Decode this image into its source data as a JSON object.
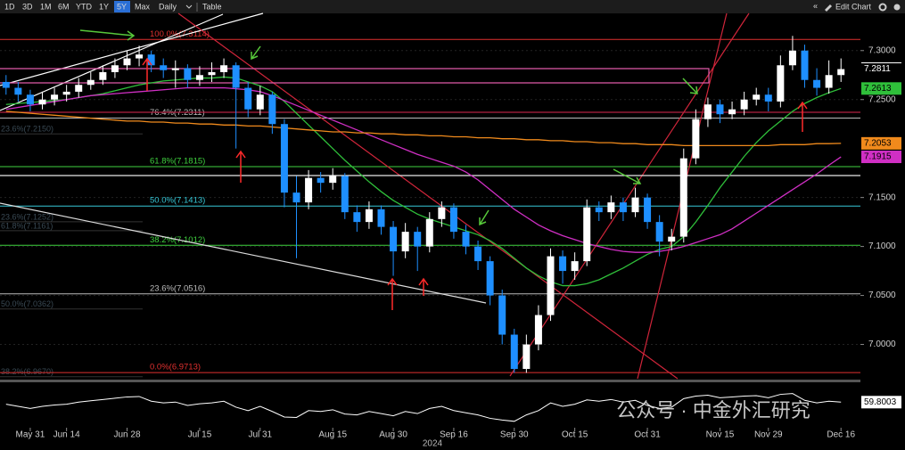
{
  "toolbar": {
    "ranges": [
      "1D",
      "3D",
      "1M",
      "6M",
      "YTD",
      "1Y",
      "5Y",
      "Max"
    ],
    "active": "5Y",
    "interval": "Daily",
    "table": "Table",
    "back": "«",
    "edit": "Edit Chart"
  },
  "chart_data": {
    "type": "candlestick",
    "categories": [
      null,
      null,
      "May 31",
      null,
      null,
      "Jun 14",
      null,
      null,
      null,
      null,
      "Jun 28",
      null,
      null,
      null,
      null,
      null,
      "Jul 15",
      null,
      null,
      null,
      null,
      "Jul 31",
      null,
      null,
      null,
      null,
      null,
      "Aug 15",
      null,
      null,
      null,
      null,
      "Aug 30",
      null,
      null,
      null,
      null,
      "Sep 16",
      null,
      null,
      null,
      null,
      "Sep 30",
      null,
      null,
      null,
      null,
      "Oct 15",
      null,
      null,
      null,
      null,
      null,
      "Oct 31",
      null,
      null,
      null,
      null,
      null,
      "Nov 15",
      null,
      null,
      null,
      "Nov 29",
      null,
      null,
      null,
      null,
      null,
      "Dec 16"
    ],
    "year": "2024",
    "candles": [
      [
        7.268,
        7.275,
        7.255,
        7.262
      ],
      [
        7.262,
        7.268,
        7.248,
        7.255
      ],
      [
        7.255,
        7.26,
        7.238,
        7.245
      ],
      [
        7.245,
        7.258,
        7.24,
        7.25
      ],
      [
        7.25,
        7.262,
        7.244,
        7.255
      ],
      [
        7.255,
        7.265,
        7.248,
        7.258
      ],
      [
        7.258,
        7.272,
        7.252,
        7.265
      ],
      [
        7.265,
        7.278,
        7.26,
        7.27
      ],
      [
        7.27,
        7.285,
        7.265,
        7.278
      ],
      [
        7.278,
        7.292,
        7.272,
        7.285
      ],
      [
        7.285,
        7.3,
        7.28,
        7.292
      ],
      [
        7.292,
        7.305,
        7.284,
        7.296
      ],
      [
        7.296,
        7.3,
        7.278,
        7.285
      ],
      [
        7.285,
        7.292,
        7.272,
        7.28
      ],
      [
        7.28,
        7.29,
        7.262,
        7.282
      ],
      [
        7.282,
        7.286,
        7.262,
        7.27
      ],
      [
        7.27,
        7.284,
        7.264,
        7.275
      ],
      [
        7.275,
        7.288,
        7.268,
        7.278
      ],
      [
        7.278,
        7.292,
        7.272,
        7.285
      ],
      [
        7.285,
        7.288,
        7.2,
        7.262
      ],
      [
        7.262,
        7.268,
        7.232,
        7.24
      ],
      [
        7.24,
        7.264,
        7.234,
        7.255
      ],
      [
        7.255,
        7.258,
        7.215,
        7.225
      ],
      [
        7.225,
        7.23,
        7.14,
        7.155
      ],
      [
        7.155,
        7.172,
        7.088,
        7.145
      ],
      [
        7.145,
        7.178,
        7.138,
        7.17
      ],
      [
        7.17,
        7.176,
        7.155,
        7.165
      ],
      [
        7.165,
        7.18,
        7.158,
        7.172
      ],
      [
        7.172,
        7.175,
        7.128,
        7.135
      ],
      [
        7.135,
        7.142,
        7.115,
        7.125
      ],
      [
        7.125,
        7.146,
        7.118,
        7.138
      ],
      [
        7.138,
        7.142,
        7.112,
        7.12
      ],
      [
        7.12,
        7.126,
        7.07,
        7.095
      ],
      [
        7.095,
        7.124,
        7.088,
        7.115
      ],
      [
        7.115,
        7.12,
        7.075,
        7.1
      ],
      [
        7.1,
        7.135,
        7.094,
        7.128
      ],
      [
        7.128,
        7.146,
        7.12,
        7.14
      ],
      [
        7.14,
        7.144,
        7.108,
        7.115
      ],
      [
        7.115,
        7.122,
        7.092,
        7.1
      ],
      [
        7.1,
        7.106,
        7.076,
        7.085
      ],
      [
        7.085,
        7.09,
        7.04,
        7.05
      ],
      [
        7.05,
        7.056,
        7.0,
        7.01
      ],
      [
        7.01,
        7.016,
        6.971,
        6.975
      ],
      [
        6.975,
        7.01,
        6.971,
        7.0
      ],
      [
        7.0,
        7.04,
        6.994,
        7.03
      ],
      [
        7.03,
        7.098,
        7.024,
        7.09
      ],
      [
        7.09,
        7.096,
        7.062,
        7.075
      ],
      [
        7.075,
        7.094,
        7.066,
        7.085
      ],
      [
        7.085,
        7.148,
        7.08,
        7.14
      ],
      [
        7.14,
        7.146,
        7.126,
        7.135
      ],
      [
        7.135,
        7.152,
        7.128,
        7.145
      ],
      [
        7.145,
        7.15,
        7.126,
        7.135
      ],
      [
        7.135,
        7.16,
        7.13,
        7.15
      ],
      [
        7.15,
        7.154,
        7.118,
        7.125
      ],
      [
        7.125,
        7.132,
        7.09,
        7.105
      ],
      [
        7.105,
        7.118,
        7.096,
        7.11
      ],
      [
        7.11,
        7.2,
        7.104,
        7.19
      ],
      [
        7.19,
        7.24,
        7.184,
        7.23
      ],
      [
        7.23,
        7.252,
        7.222,
        7.245
      ],
      [
        7.245,
        7.25,
        7.226,
        7.235
      ],
      [
        7.235,
        7.248,
        7.23,
        7.24
      ],
      [
        7.24,
        7.258,
        7.234,
        7.25
      ],
      [
        7.25,
        7.262,
        7.244,
        7.255
      ],
      [
        7.255,
        7.262,
        7.238,
        7.248
      ],
      [
        7.248,
        7.295,
        7.242,
        7.285
      ],
      [
        7.285,
        7.315,
        7.28,
        7.3
      ],
      [
        7.3,
        7.306,
        7.262,
        7.27
      ],
      [
        7.27,
        7.282,
        7.254,
        7.262
      ],
      [
        7.262,
        7.29,
        7.256,
        7.275
      ],
      [
        7.275,
        7.292,
        7.268,
        7.2811
      ]
    ],
    "candle_last_label": "7.2811",
    "up_color": "#ffffff",
    "down_color": "#1e8fff",
    "series": [
      {
        "color": "#2fbf3a",
        "last_label": "7.2613",
        "values": [
          7.245,
          7.246,
          7.247,
          7.248,
          7.249,
          7.25,
          7.252,
          7.254,
          7.256,
          7.259,
          7.262,
          7.265,
          7.267,
          7.269,
          7.27,
          7.271,
          7.272,
          7.272,
          7.273,
          7.272,
          7.268,
          7.264,
          7.258,
          7.248,
          7.236,
          7.224,
          7.212,
          7.2,
          7.188,
          7.177,
          7.166,
          7.156,
          7.147,
          7.14,
          7.133,
          7.128,
          7.124,
          7.12,
          7.116,
          7.112,
          7.106,
          7.098,
          7.088,
          7.078,
          7.07,
          7.064,
          7.06,
          7.06,
          7.062,
          7.066,
          7.072,
          7.078,
          7.085,
          7.092,
          7.097,
          7.1,
          7.11,
          7.125,
          7.142,
          7.16,
          7.176,
          7.192,
          7.206,
          7.218,
          7.228,
          7.238,
          7.246,
          7.252,
          7.257,
          7.2613
        ]
      },
      {
        "color": "#d02fc4",
        "last_label": "7.1915",
        "values": [
          7.24,
          7.242,
          7.244,
          7.246,
          7.248,
          7.25,
          7.252,
          7.254,
          7.255,
          7.256,
          7.257,
          7.258,
          7.259,
          7.26,
          7.261,
          7.262,
          7.262,
          7.262,
          7.262,
          7.261,
          7.26,
          7.258,
          7.254,
          7.249,
          7.244,
          7.239,
          7.234,
          7.229,
          7.224,
          7.219,
          7.214,
          7.209,
          7.204,
          7.199,
          7.194,
          7.19,
          7.186,
          7.182,
          7.176,
          7.168,
          7.158,
          7.148,
          7.138,
          7.13,
          7.122,
          7.116,
          7.111,
          7.107,
          7.103,
          7.1,
          7.097,
          7.095,
          7.094,
          7.094,
          7.095,
          7.097,
          7.1,
          7.104,
          7.108,
          7.112,
          7.118,
          7.126,
          7.134,
          7.142,
          7.15,
          7.158,
          7.166,
          7.174,
          7.183,
          7.1915
        ]
      },
      {
        "color": "#f08a1c",
        "last_label": "7.2053",
        "values": [
          7.238,
          7.237,
          7.236,
          7.235,
          7.234,
          7.233,
          7.232,
          7.231,
          7.23,
          7.229,
          7.228,
          7.228,
          7.227,
          7.227,
          7.226,
          7.226,
          7.225,
          7.225,
          7.224,
          7.224,
          7.223,
          7.223,
          7.222,
          7.221,
          7.22,
          7.219,
          7.218,
          7.217,
          7.217,
          7.216,
          7.216,
          7.215,
          7.215,
          7.214,
          7.214,
          7.213,
          7.213,
          7.212,
          7.212,
          7.211,
          7.211,
          7.21,
          7.21,
          7.209,
          7.209,
          7.208,
          7.208,
          7.207,
          7.207,
          7.206,
          7.206,
          7.205,
          7.205,
          7.204,
          7.204,
          7.204,
          7.203,
          7.203,
          7.203,
          7.203,
          7.203,
          7.203,
          7.203,
          7.203,
          7.204,
          7.204,
          7.204,
          7.205,
          7.205,
          7.2053
        ]
      }
    ],
    "ylim": [
      6.965,
      7.338
    ],
    "yticks": [
      {
        "value": 7.3,
        "label": "7.3000"
      },
      {
        "value": 7.25,
        "label": "7.2500"
      },
      {
        "value": 7.15,
        "label": "7.1500"
      },
      {
        "value": 7.1,
        "label": "7.1000"
      },
      {
        "value": 7.05,
        "label": "7.0500"
      },
      {
        "value": 7.0,
        "label": "7.0000"
      }
    ],
    "fib_levels": [
      {
        "value": 7.3114,
        "label": "100.0%(7.3114)",
        "color": "#e0302f"
      },
      {
        "value": 7.2311,
        "label": "76.4%(7.2311)",
        "color": "#bbbbbb"
      },
      {
        "value": 7.1815,
        "label": "61.8%(7.1815)",
        "color": "#3fd23f"
      },
      {
        "value": 7.1413,
        "label": "50.0%(7.1413)",
        "color": "#36c8d8"
      },
      {
        "value": 7.1012,
        "label": "38.2%(7.1012)",
        "color": "#3fd23f"
      },
      {
        "value": 7.0516,
        "label": "23.6%(7.0516)",
        "color": "#bbbbbb"
      },
      {
        "value": 6.9713,
        "label": "0.0%(6.9713)",
        "color": "#e0302f"
      }
    ],
    "fib_levels_faint": [
      {
        "value": 7.215,
        "label": "23.6%(7.2150)"
      },
      {
        "value": 7.1252,
        "label": "23.6%(7.1252)"
      },
      {
        "value": 7.1161,
        "label": "61.8%(7.1161)"
      },
      {
        "value": 7.0362,
        "label": "50.0%(7.0362)"
      },
      {
        "value": 6.967,
        "label": "38.2%(6.9670)"
      }
    ],
    "rsi": {
      "color": "#ffffff",
      "last_label": "59.8003",
      "ylim": [
        0,
        100
      ],
      "values": [
        55,
        50,
        45,
        50,
        53,
        55,
        60,
        63,
        66,
        69,
        72,
        73,
        62,
        58,
        60,
        52,
        56,
        58,
        62,
        48,
        40,
        50,
        38,
        25,
        24,
        40,
        38,
        42,
        32,
        30,
        38,
        33,
        28,
        38,
        33,
        45,
        50,
        40,
        35,
        30,
        22,
        18,
        15,
        30,
        40,
        58,
        50,
        55,
        65,
        62,
        66,
        60,
        64,
        52,
        45,
        48,
        68,
        74,
        76,
        70,
        72,
        74,
        75,
        70,
        78,
        80,
        64,
        58,
        62,
        59.8003
      ]
    },
    "watermark": "公众号 · 中金外汇研究"
  }
}
